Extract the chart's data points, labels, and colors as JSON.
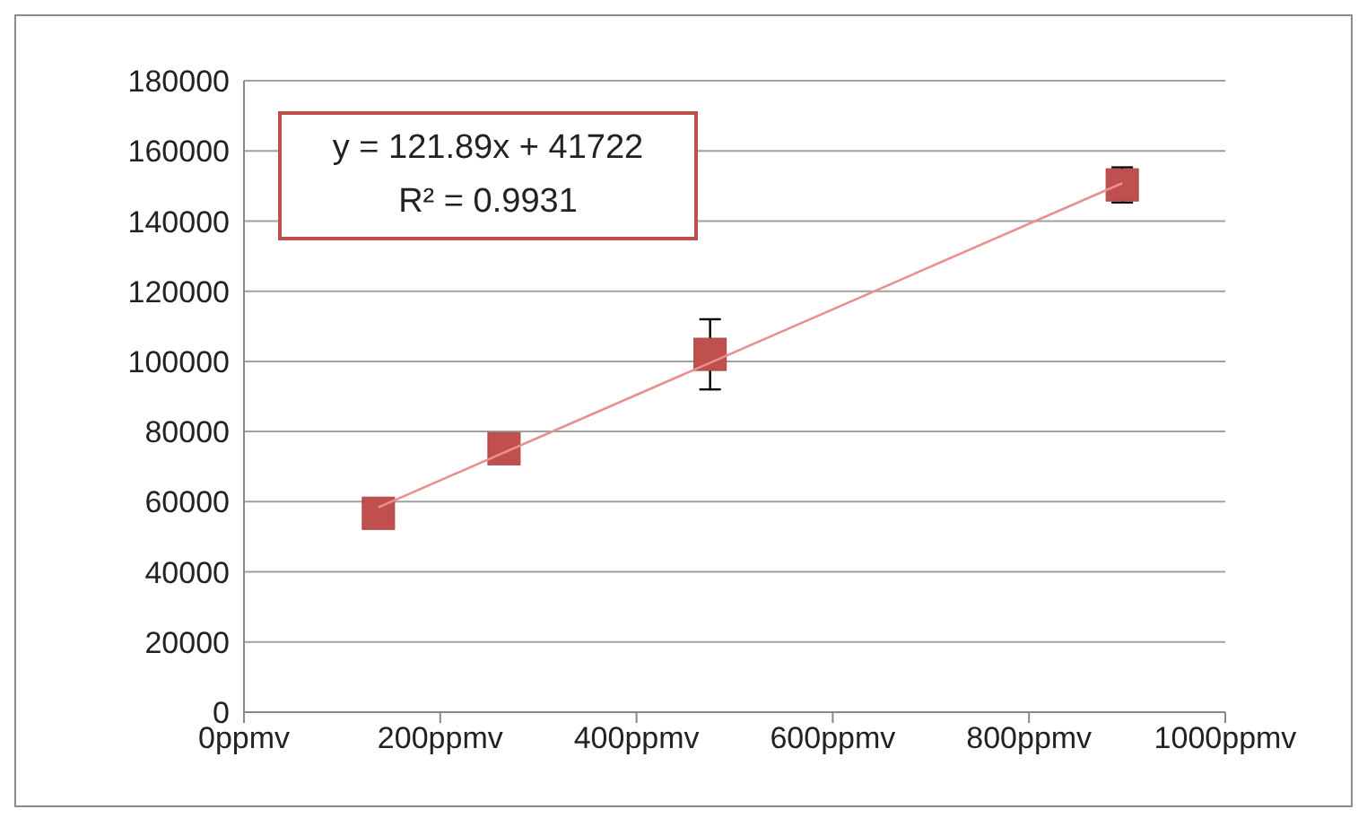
{
  "chart_data": {
    "type": "scatter",
    "annotations": [
      "y = 121.89x + 41722",
      "R² = 0.9931"
    ],
    "xlim": [
      0,
      1000
    ],
    "xticks": [
      {
        "value": 0,
        "label": "0ppmv"
      },
      {
        "value": 200,
        "label": "200ppmv"
      },
      {
        "value": 400,
        "label": "400ppmv"
      },
      {
        "value": 600,
        "label": "600ppmv"
      },
      {
        "value": 800,
        "label": "800ppmv"
      },
      {
        "value": 1000,
        "label": "1000ppmv"
      }
    ],
    "ylim": [
      0,
      180000
    ],
    "yticks": [
      0,
      20000,
      40000,
      60000,
      80000,
      100000,
      120000,
      140000,
      160000,
      180000
    ],
    "grid": "y",
    "legend": false,
    "series": [
      {
        "color": "#c0504d",
        "marker": "square",
        "x": [
          137,
          265,
          475,
          895
        ],
        "values": [
          56700,
          75100,
          102000,
          150300
        ],
        "errors": [
          null,
          null,
          10000,
          5000
        ]
      },
      {
        "type": "line",
        "color": "#e8908e",
        "marker": "none",
        "x": [
          137,
          895
        ],
        "values": [
          58400,
          150800
        ]
      }
    ]
  }
}
